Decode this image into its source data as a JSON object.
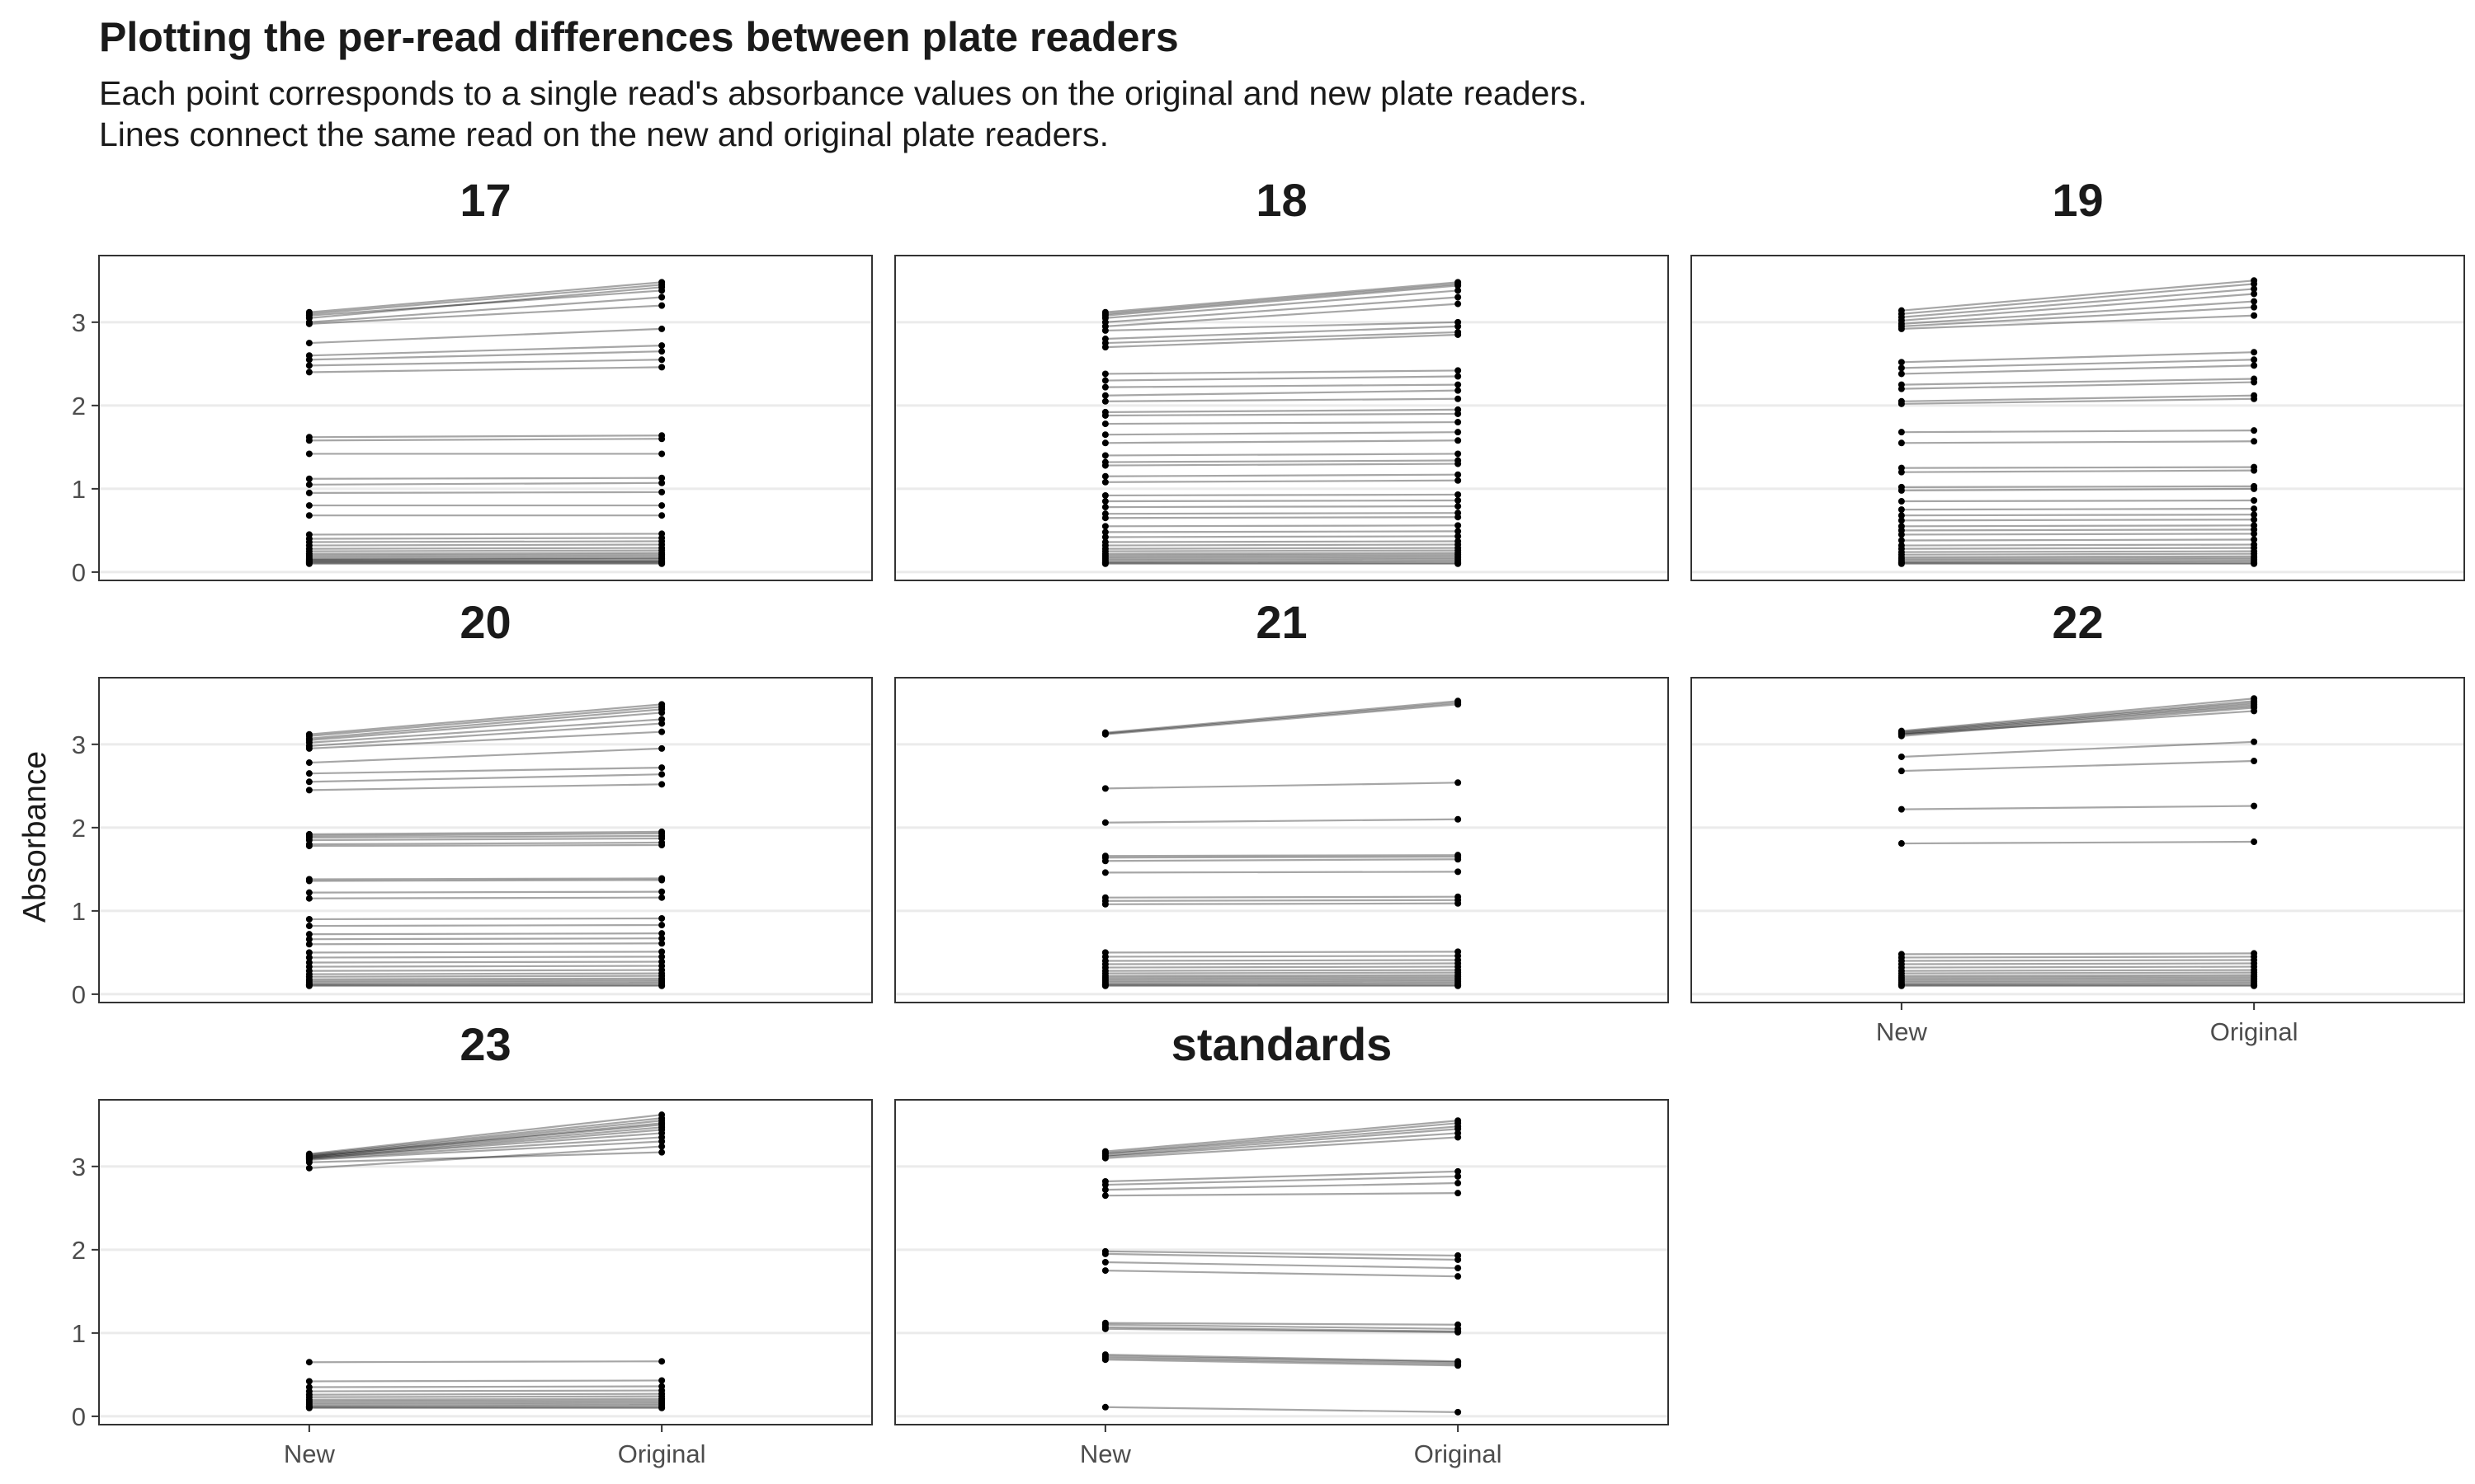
{
  "title": "Plotting the per-read differences between plate readers",
  "subtitle_lines": [
    "Each point corresponds to a single read's absorbance values on the original and new plate readers.",
    "Lines connect the same read on the new and original plate readers."
  ],
  "chart_data": {
    "type": "line",
    "facet_layout": "3 columns, free x axis labels shown on bottom panel of each column",
    "xlabel": "",
    "ylabel": "Absorbance",
    "x_categories": [
      "New",
      "Original"
    ],
    "ylim": [
      -0.1,
      3.8
    ],
    "y_ticks": [
      0,
      1,
      2,
      3
    ],
    "grid": "horizontal major only",
    "line_color": "#000000",
    "point_color": "#000000",
    "panels": [
      {
        "label": "17",
        "reads": [
          [
            3.12,
            3.48
          ],
          [
            3.1,
            3.45
          ],
          [
            3.05,
            3.42
          ],
          [
            3.08,
            3.38
          ],
          [
            3.0,
            3.3
          ],
          [
            2.98,
            3.2
          ],
          [
            2.75,
            2.92
          ],
          [
            2.6,
            2.72
          ],
          [
            2.55,
            2.65
          ],
          [
            2.48,
            2.55
          ],
          [
            2.4,
            2.46
          ],
          [
            1.62,
            1.64
          ],
          [
            1.58,
            1.6
          ],
          [
            1.42,
            1.42
          ],
          [
            1.12,
            1.13
          ],
          [
            1.05,
            1.07
          ],
          [
            0.95,
            0.96
          ],
          [
            0.8,
            0.8
          ],
          [
            0.68,
            0.68
          ],
          [
            0.45,
            0.46
          ],
          [
            0.4,
            0.41
          ],
          [
            0.36,
            0.37
          ],
          [
            0.32,
            0.33
          ],
          [
            0.28,
            0.29
          ],
          [
            0.25,
            0.26
          ],
          [
            0.22,
            0.23
          ],
          [
            0.2,
            0.21
          ],
          [
            0.18,
            0.19
          ],
          [
            0.16,
            0.17
          ],
          [
            0.15,
            0.16
          ],
          [
            0.14,
            0.14
          ],
          [
            0.13,
            0.13
          ],
          [
            0.12,
            0.12
          ],
          [
            0.11,
            0.11
          ],
          [
            0.1,
            0.1
          ]
        ]
      },
      {
        "label": "18",
        "reads": [
          [
            3.12,
            3.48
          ],
          [
            3.1,
            3.46
          ],
          [
            3.08,
            3.44
          ],
          [
            3.05,
            3.38
          ],
          [
            3.0,
            3.3
          ],
          [
            2.95,
            3.22
          ],
          [
            2.9,
            3.0
          ],
          [
            2.8,
            2.95
          ],
          [
            2.75,
            2.88
          ],
          [
            2.7,
            2.85
          ],
          [
            2.38,
            2.42
          ],
          [
            2.3,
            2.35
          ],
          [
            2.22,
            2.25
          ],
          [
            2.12,
            2.18
          ],
          [
            2.05,
            2.08
          ],
          [
            1.92,
            1.95
          ],
          [
            1.88,
            1.9
          ],
          [
            1.78,
            1.8
          ],
          [
            1.65,
            1.68
          ],
          [
            1.55,
            1.58
          ],
          [
            1.4,
            1.42
          ],
          [
            1.32,
            1.34
          ],
          [
            1.28,
            1.3
          ],
          [
            1.15,
            1.17
          ],
          [
            1.08,
            1.1
          ],
          [
            0.92,
            0.93
          ],
          [
            0.85,
            0.86
          ],
          [
            0.78,
            0.79
          ],
          [
            0.7,
            0.71
          ],
          [
            0.65,
            0.66
          ],
          [
            0.55,
            0.56
          ],
          [
            0.48,
            0.49
          ],
          [
            0.42,
            0.43
          ],
          [
            0.36,
            0.37
          ],
          [
            0.32,
            0.33
          ],
          [
            0.28,
            0.29
          ],
          [
            0.25,
            0.26
          ],
          [
            0.22,
            0.23
          ],
          [
            0.2,
            0.21
          ],
          [
            0.18,
            0.19
          ],
          [
            0.16,
            0.17
          ],
          [
            0.14,
            0.15
          ],
          [
            0.12,
            0.13
          ],
          [
            0.11,
            0.11
          ],
          [
            0.1,
            0.1
          ]
        ]
      },
      {
        "label": "19",
        "reads": [
          [
            3.14,
            3.5
          ],
          [
            3.1,
            3.46
          ],
          [
            3.06,
            3.4
          ],
          [
            3.02,
            3.34
          ],
          [
            2.98,
            3.25
          ],
          [
            2.95,
            3.18
          ],
          [
            2.92,
            3.08
          ],
          [
            2.52,
            2.64
          ],
          [
            2.45,
            2.55
          ],
          [
            2.38,
            2.48
          ],
          [
            2.25,
            2.32
          ],
          [
            2.2,
            2.28
          ],
          [
            2.05,
            2.12
          ],
          [
            2.02,
            2.08
          ],
          [
            1.68,
            1.7
          ],
          [
            1.55,
            1.57
          ],
          [
            1.25,
            1.26
          ],
          [
            1.2,
            1.22
          ],
          [
            1.02,
            1.03
          ],
          [
            0.98,
            1.0
          ],
          [
            0.85,
            0.86
          ],
          [
            0.75,
            0.76
          ],
          [
            0.68,
            0.69
          ],
          [
            0.62,
            0.63
          ],
          [
            0.55,
            0.56
          ],
          [
            0.5,
            0.51
          ],
          [
            0.45,
            0.46
          ],
          [
            0.38,
            0.39
          ],
          [
            0.32,
            0.33
          ],
          [
            0.28,
            0.29
          ],
          [
            0.24,
            0.25
          ],
          [
            0.21,
            0.22
          ],
          [
            0.18,
            0.19
          ],
          [
            0.16,
            0.17
          ],
          [
            0.14,
            0.15
          ],
          [
            0.12,
            0.13
          ],
          [
            0.11,
            0.11
          ],
          [
            0.1,
            0.1
          ]
        ]
      },
      {
        "label": "20",
        "reads": [
          [
            3.12,
            3.48
          ],
          [
            3.1,
            3.45
          ],
          [
            3.07,
            3.42
          ],
          [
            3.05,
            3.38
          ],
          [
            3.02,
            3.3
          ],
          [
            2.98,
            3.25
          ],
          [
            2.95,
            3.15
          ],
          [
            2.78,
            2.95
          ],
          [
            2.65,
            2.72
          ],
          [
            2.55,
            2.64
          ],
          [
            2.45,
            2.52
          ],
          [
            1.92,
            1.95
          ],
          [
            1.9,
            1.93
          ],
          [
            1.88,
            1.9
          ],
          [
            1.85,
            1.87
          ],
          [
            1.8,
            1.82
          ],
          [
            1.78,
            1.79
          ],
          [
            1.38,
            1.39
          ],
          [
            1.36,
            1.37
          ],
          [
            1.22,
            1.23
          ],
          [
            1.15,
            1.16
          ],
          [
            0.9,
            0.91
          ],
          [
            0.82,
            0.83
          ],
          [
            0.72,
            0.73
          ],
          [
            0.66,
            0.67
          ],
          [
            0.6,
            0.61
          ],
          [
            0.5,
            0.51
          ],
          [
            0.44,
            0.45
          ],
          [
            0.38,
            0.39
          ],
          [
            0.33,
            0.34
          ],
          [
            0.28,
            0.29
          ],
          [
            0.24,
            0.25
          ],
          [
            0.21,
            0.22
          ],
          [
            0.18,
            0.19
          ],
          [
            0.16,
            0.17
          ],
          [
            0.14,
            0.15
          ],
          [
            0.12,
            0.13
          ],
          [
            0.11,
            0.11
          ],
          [
            0.1,
            0.1
          ]
        ]
      },
      {
        "label": "21",
        "reads": [
          [
            3.14,
            3.52
          ],
          [
            3.13,
            3.5
          ],
          [
            3.12,
            3.48
          ],
          [
            2.47,
            2.54
          ],
          [
            2.06,
            2.1
          ],
          [
            1.66,
            1.67
          ],
          [
            1.64,
            1.65
          ],
          [
            1.6,
            1.62
          ],
          [
            1.46,
            1.47
          ],
          [
            1.16,
            1.17
          ],
          [
            1.12,
            1.13
          ],
          [
            1.08,
            1.09
          ],
          [
            0.5,
            0.51
          ],
          [
            0.45,
            0.46
          ],
          [
            0.4,
            0.41
          ],
          [
            0.36,
            0.37
          ],
          [
            0.32,
            0.33
          ],
          [
            0.28,
            0.29
          ],
          [
            0.25,
            0.26
          ],
          [
            0.22,
            0.23
          ],
          [
            0.2,
            0.21
          ],
          [
            0.18,
            0.19
          ],
          [
            0.16,
            0.17
          ],
          [
            0.14,
            0.15
          ],
          [
            0.12,
            0.13
          ],
          [
            0.11,
            0.11
          ],
          [
            0.1,
            0.1
          ]
        ]
      },
      {
        "label": "22",
        "reads": [
          [
            3.16,
            3.55
          ],
          [
            3.15,
            3.52
          ],
          [
            3.14,
            3.5
          ],
          [
            3.13,
            3.48
          ],
          [
            3.12,
            3.46
          ],
          [
            3.1,
            3.44
          ],
          [
            3.12,
            3.4
          ],
          [
            2.85,
            3.03
          ],
          [
            2.68,
            2.8
          ],
          [
            2.22,
            2.26
          ],
          [
            1.81,
            1.83
          ],
          [
            0.48,
            0.49
          ],
          [
            0.44,
            0.45
          ],
          [
            0.4,
            0.41
          ],
          [
            0.36,
            0.37
          ],
          [
            0.32,
            0.33
          ],
          [
            0.28,
            0.29
          ],
          [
            0.25,
            0.26
          ],
          [
            0.22,
            0.23
          ],
          [
            0.2,
            0.21
          ],
          [
            0.18,
            0.19
          ],
          [
            0.16,
            0.17
          ],
          [
            0.14,
            0.15
          ],
          [
            0.12,
            0.13
          ],
          [
            0.11,
            0.11
          ],
          [
            0.1,
            0.1
          ]
        ]
      },
      {
        "label": "23",
        "reads": [
          [
            3.15,
            3.62
          ],
          [
            3.14,
            3.58
          ],
          [
            3.13,
            3.55
          ],
          [
            3.12,
            3.52
          ],
          [
            3.12,
            3.5
          ],
          [
            3.11,
            3.47
          ],
          [
            3.1,
            3.44
          ],
          [
            3.1,
            3.4
          ],
          [
            3.09,
            3.35
          ],
          [
            3.08,
            3.3
          ],
          [
            2.98,
            3.24
          ],
          [
            3.05,
            3.17
          ],
          [
            0.65,
            0.66
          ],
          [
            0.42,
            0.43
          ],
          [
            0.35,
            0.36
          ],
          [
            0.3,
            0.31
          ],
          [
            0.26,
            0.27
          ],
          [
            0.23,
            0.24
          ],
          [
            0.2,
            0.21
          ],
          [
            0.18,
            0.19
          ],
          [
            0.16,
            0.17
          ],
          [
            0.14,
            0.15
          ],
          [
            0.12,
            0.13
          ],
          [
            0.11,
            0.11
          ],
          [
            0.1,
            0.1
          ]
        ]
      },
      {
        "label": "standards",
        "reads": [
          [
            3.18,
            3.55
          ],
          [
            3.16,
            3.52
          ],
          [
            3.15,
            3.48
          ],
          [
            3.13,
            3.45
          ],
          [
            3.12,
            3.4
          ],
          [
            3.1,
            3.35
          ],
          [
            2.82,
            2.94
          ],
          [
            2.78,
            2.88
          ],
          [
            2.72,
            2.8
          ],
          [
            2.65,
            2.68
          ],
          [
            1.98,
            1.93
          ],
          [
            1.95,
            1.88
          ],
          [
            1.85,
            1.78
          ],
          [
            1.75,
            1.68
          ],
          [
            1.12,
            1.1
          ],
          [
            1.1,
            1.05
          ],
          [
            1.07,
            1.02
          ],
          [
            1.05,
            1.01
          ],
          [
            0.74,
            0.66
          ],
          [
            0.72,
            0.65
          ],
          [
            0.7,
            0.63
          ],
          [
            0.68,
            0.61
          ],
          [
            0.11,
            0.05
          ]
        ]
      }
    ]
  }
}
